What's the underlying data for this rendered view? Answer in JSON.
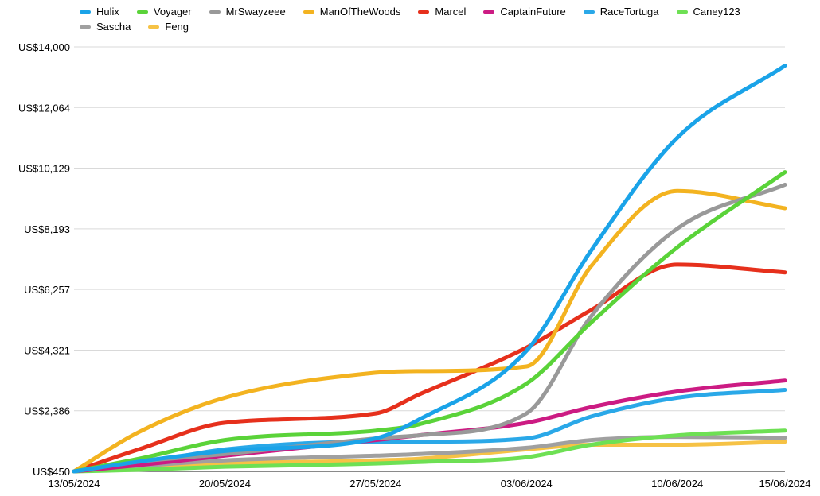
{
  "chart_data": {
    "type": "line",
    "title": "",
    "xlabel": "",
    "ylabel": "",
    "ylim": [
      450,
      14000
    ],
    "grid": true,
    "legend_position": "top",
    "y_ticks": [
      "US$450",
      "US$2,386",
      "US$4,321",
      "US$6,257",
      "US$8,193",
      "US$10,129",
      "US$12,064",
      "US$14,000"
    ],
    "y_tick_values": [
      450,
      2386,
      4321,
      6257,
      8193,
      10129,
      12064,
      14000
    ],
    "x_ticks": [
      "13/05/2024",
      "20/05/2024",
      "27/05/2024",
      "03/06/2024",
      "10/06/2024",
      "15/06/2024"
    ],
    "x_tick_days": [
      0,
      7,
      14,
      21,
      28,
      33
    ],
    "x": [
      "13/05/2024",
      "16/05/2024",
      "20/05/2024",
      "27/05/2024",
      "29/05/2024",
      "03/06/2024",
      "06/06/2024",
      "10/06/2024",
      "15/06/2024"
    ],
    "series": [
      {
        "name": "Hulix",
        "color": "#1aa3e8",
        "values": [
          450,
          760,
          1100,
          1500,
          2100,
          4300,
          7500,
          11100,
          13400
        ]
      },
      {
        "name": "Voyager",
        "color": "#5ad339",
        "values": [
          450,
          850,
          1450,
          1750,
          1950,
          3250,
          5200,
          7600,
          10000
        ]
      },
      {
        "name": "MrSwayzeee",
        "color": "#999999",
        "values": [
          450,
          760,
          1000,
          1500,
          1600,
          2300,
          5400,
          8200,
          9600
        ]
      },
      {
        "name": "ManOfTheWoods",
        "color": "#f3b320",
        "values": [
          450,
          1700,
          2800,
          3600,
          3650,
          3800,
          7000,
          9400,
          8850
        ]
      },
      {
        "name": "Marcel",
        "color": "#e6301c",
        "values": [
          450,
          1150,
          2000,
          2300,
          2900,
          4400,
          5600,
          7050,
          6800
        ]
      },
      {
        "name": "CaptainFuture",
        "color": "#cc1b83",
        "values": [
          450,
          650,
          950,
          1450,
          1600,
          2000,
          2500,
          3000,
          3350
        ]
      },
      {
        "name": "RaceTortuga",
        "color": "#2aa8e8",
        "values": [
          450,
          700,
          1150,
          1400,
          1400,
          1500,
          2200,
          2800,
          3050
        ]
      },
      {
        "name": "Caney123",
        "color": "#6ee054",
        "values": [
          450,
          500,
          600,
          700,
          750,
          900,
          1300,
          1600,
          1750
        ]
      },
      {
        "name": "Sascha",
        "color": "#a0a0a0",
        "values": [
          450,
          620,
          800,
          950,
          1000,
          1200,
          1450,
          1550,
          1520
        ]
      },
      {
        "name": "Feng",
        "color": "#f6c245",
        "values": [
          450,
          580,
          700,
          800,
          850,
          1150,
          1300,
          1300,
          1400
        ]
      }
    ]
  }
}
